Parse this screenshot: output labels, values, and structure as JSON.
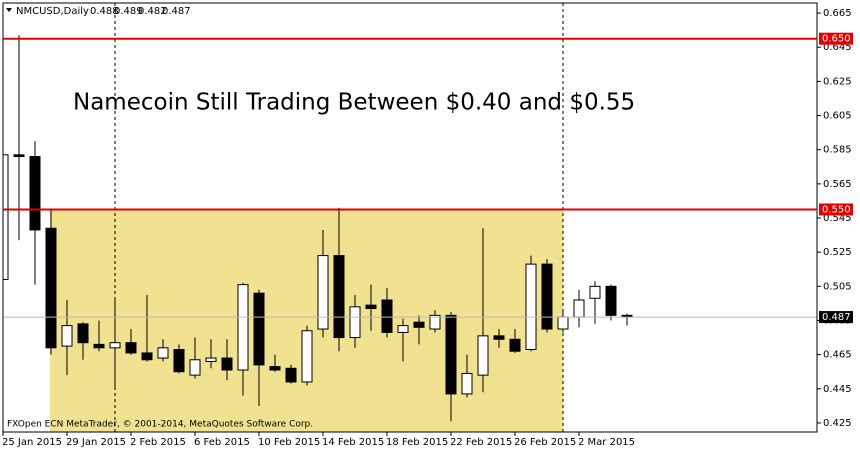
{
  "chart_data": {
    "type": "candlestick",
    "symbol": "NMCUSD,Daily",
    "title": "Namecoin Still Trading Between $0.40 and $0.55",
    "footer": "FXOpen ECN MetaTrader, © 2001-2014, MetaQuotes Software Corp.",
    "categories": [
      "25 Jan 2015",
      null,
      null,
      null,
      "29 Jan 2015",
      null,
      null,
      null,
      "2 Feb 2015",
      null,
      null,
      null,
      "6 Feb 2015",
      null,
      null,
      null,
      "10 Feb 2015",
      null,
      null,
      null,
      "14 Feb 2015",
      null,
      null,
      null,
      "18 Feb 2015",
      null,
      null,
      null,
      "22 Feb 2015",
      null,
      null,
      null,
      "26 Feb 2015",
      null,
      null,
      null,
      "2 Mar 2015",
      null,
      null,
      null
    ],
    "open": [
      0.509,
      0.582,
      0.581,
      0.539,
      0.47,
      0.483,
      0.471,
      0.469,
      0.472,
      0.466,
      0.463,
      0.468,
      0.453,
      0.461,
      0.463,
      0.456,
      0.501,
      0.458,
      0.457,
      0.449,
      0.48,
      0.523,
      0.475,
      0.494,
      0.497,
      0.478,
      0.484,
      0.48,
      0.488,
      0.442,
      0.453,
      0.476,
      0.474,
      0.468,
      0.518,
      0.48,
      0.487,
      0.498,
      0.505,
      0.488
    ],
    "high": [
      0.629,
      0.652,
      0.59,
      0.55,
      0.497,
      0.484,
      0.485,
      0.497,
      0.48,
      0.5,
      0.474,
      0.471,
      0.475,
      0.474,
      0.474,
      0.507,
      0.503,
      0.465,
      0.459,
      0.482,
      0.538,
      0.551,
      0.5,
      0.506,
      0.504,
      0.486,
      0.488,
      0.491,
      0.49,
      0.465,
      0.539,
      0.48,
      0.48,
      0.523,
      0.521,
      0.491,
      0.503,
      0.508,
      0.506,
      0.489
    ],
    "low": [
      0.509,
      0.532,
      0.506,
      0.465,
      0.453,
      0.462,
      0.467,
      0.445,
      0.465,
      0.461,
      0.461,
      0.454,
      0.451,
      0.457,
      0.45,
      0.441,
      0.435,
      0.455,
      0.448,
      0.447,
      0.475,
      0.467,
      0.469,
      0.479,
      0.475,
      0.461,
      0.471,
      0.478,
      0.426,
      0.44,
      0.443,
      0.469,
      0.466,
      0.467,
      0.478,
      0.478,
      0.481,
      0.483,
      0.485,
      0.482
    ],
    "close": [
      0.582,
      0.581,
      0.538,
      0.469,
      0.482,
      0.472,
      0.469,
      0.472,
      0.466,
      0.462,
      0.469,
      0.455,
      0.462,
      0.463,
      0.456,
      0.506,
      0.459,
      0.456,
      0.449,
      0.479,
      0.523,
      0.475,
      0.493,
      0.492,
      0.478,
      0.482,
      0.481,
      0.488,
      0.442,
      0.454,
      0.476,
      0.474,
      0.467,
      0.518,
      0.48,
      0.487,
      0.497,
      0.505,
      0.488,
      0.487
    ],
    "ylim": [
      0.4197,
      0.6709
    ],
    "yticks": [
      0.665,
      0.645,
      0.625,
      0.605,
      0.585,
      0.565,
      0.545,
      0.525,
      0.505,
      0.485,
      0.465,
      0.445,
      0.425
    ],
    "hlines": [
      {
        "value": 0.65,
        "label": "0.650",
        "color": "#e00000"
      },
      {
        "value": 0.55,
        "label": "0.550",
        "color": "#e00000"
      }
    ],
    "up_color": "#ffffff",
    "down_color": "#000000"
  }
}
